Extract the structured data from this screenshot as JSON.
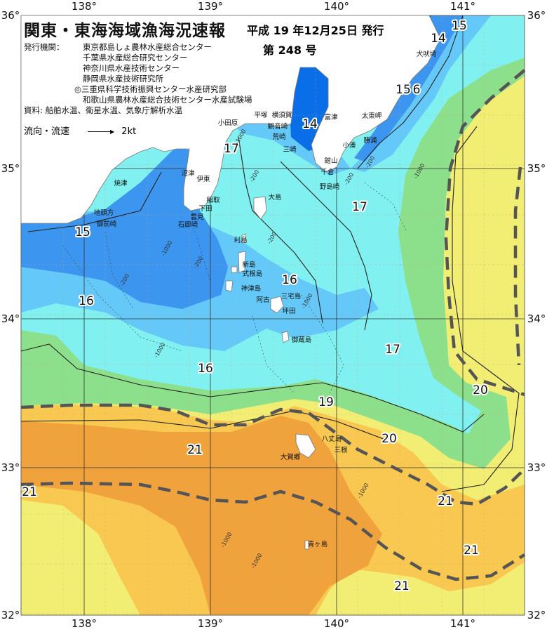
{
  "header": {
    "title": "関東・東海海域漁海況速報",
    "date": "平成 19 年12月25日 発行",
    "issue": "第 248 号",
    "publisher_label": "発行機関：",
    "publishers": [
      "東京都島しょ農林水産総合センター",
      "千葉県水産総合研究センター",
      "神奈川県水産技術センター",
      "静岡県水産技術研究所",
      "◎三重県科学技術振興センター水産研究部",
      "和歌山県農林水産総合技術センター水産試験場"
    ],
    "sources": "資料: 船舶水温、衛星水温、気象庁解析水温",
    "current_legend_label": "流向・流速",
    "current_legend_speed": "2kt"
  },
  "axes": {
    "longitude": [
      "138°",
      "139°",
      "140°",
      "141°"
    ],
    "latitude": [
      "36°",
      "35°",
      "34°",
      "33°",
      "32°"
    ]
  },
  "temperature_labels": [
    "15",
    "14",
    "15",
    "6",
    "14",
    "17",
    "17",
    "15",
    "16",
    "16",
    "17",
    "16",
    "19",
    "20",
    "20",
    "21",
    "21",
    "21",
    "21",
    "21"
  ],
  "place_names": [
    "小田原",
    "平塚",
    "横須賀",
    "観音崎",
    "荒崎",
    "三崎",
    "富津",
    "館山",
    "千倉",
    "野島崎",
    "小湊",
    "勝浦",
    "太東岬",
    "犬吠埼",
    "沼津",
    "焼津",
    "伊東",
    "稲取",
    "下田",
    "雲見",
    "石廊崎",
    "地頭方",
    "御前崎",
    "大島",
    "利島",
    "新島",
    "式根島",
    "神津島",
    "三宅島",
    "阿古",
    "坪田",
    "御蔵島",
    "八丈島",
    "三根",
    "大賀郷",
    "青ヶ島"
  ],
  "depth_labels": [
    "-200",
    "-1000",
    "-200",
    "-200",
    "-200",
    "-1000",
    "-200",
    "-1000",
    "-1000",
    "-200",
    "-1000",
    "-1000",
    "-1000",
    "-1000"
  ],
  "colors": {
    "land": "#ffffff",
    "t14": "#0a6ee8",
    "t15": "#3c96f0",
    "t16": "#64c8f8",
    "t17": "#80f0f0",
    "t18_19": "#8ce08c",
    "t20": "#f2ee74",
    "t21": "#f8c850",
    "t22": "#f0a23c",
    "kuroshio_axis": "#555555"
  }
}
